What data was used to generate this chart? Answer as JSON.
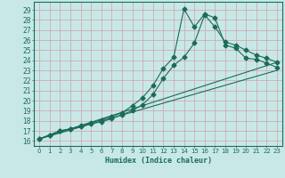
{
  "xlabel": "Humidex (Indice chaleur)",
  "bg_color": "#c8e8e8",
  "grid_color": "#b0c8c8",
  "line_color": "#1a6b5a",
  "xlim": [
    -0.5,
    23.5
  ],
  "ylim": [
    15.5,
    29.8
  ],
  "xticks": [
    0,
    1,
    2,
    3,
    4,
    5,
    6,
    7,
    8,
    9,
    10,
    11,
    12,
    13,
    14,
    15,
    16,
    17,
    18,
    19,
    20,
    21,
    22,
    23
  ],
  "yticks": [
    16,
    17,
    18,
    19,
    20,
    21,
    22,
    23,
    24,
    25,
    26,
    27,
    28,
    29
  ],
  "line1_x": [
    0,
    1,
    2,
    3,
    4,
    5,
    6,
    7,
    8,
    9,
    10,
    11,
    12,
    13,
    14,
    15,
    16,
    17,
    18,
    19,
    20,
    21,
    22,
    23
  ],
  "line1_y": [
    16.2,
    16.6,
    17.0,
    17.2,
    17.5,
    17.8,
    18.1,
    18.4,
    18.8,
    19.5,
    20.3,
    21.5,
    23.2,
    24.3,
    29.1,
    27.3,
    28.6,
    28.2,
    25.5,
    25.2,
    24.2,
    24.1,
    23.7,
    23.3
  ],
  "line2_x": [
    0,
    1,
    2,
    3,
    4,
    5,
    6,
    7,
    8,
    9,
    10,
    11,
    12,
    13,
    14,
    15,
    16,
    17,
    18,
    19,
    20,
    21,
    22,
    23
  ],
  "line2_y": [
    16.2,
    16.6,
    17.0,
    17.2,
    17.4,
    17.7,
    17.9,
    18.2,
    18.6,
    19.0,
    19.6,
    20.6,
    22.2,
    23.5,
    24.3,
    25.7,
    28.5,
    27.3,
    25.8,
    25.5,
    25.0,
    24.5,
    24.2,
    23.8
  ],
  "line3_x": [
    0,
    23
  ],
  "line3_y": [
    16.2,
    23.0
  ],
  "line4_x": [
    0,
    23
  ],
  "line4_y": [
    16.2,
    23.8
  ]
}
